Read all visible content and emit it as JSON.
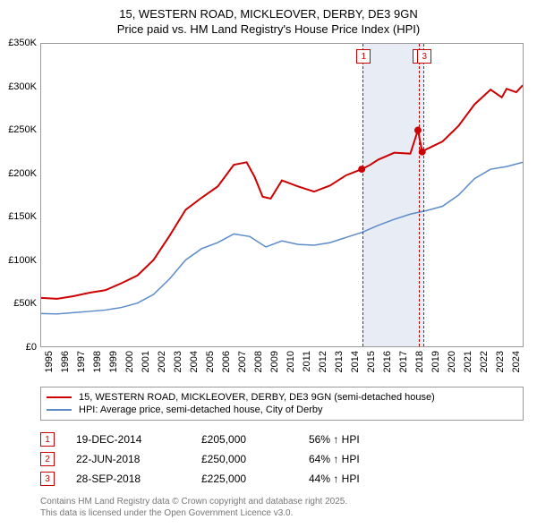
{
  "title_line1": "15, WESTERN ROAD, MICKLEOVER, DERBY, DE3 9GN",
  "title_line2": "Price paid vs. HM Land Registry's House Price Index (HPI)",
  "chart": {
    "type": "line",
    "background_color": "#ffffff",
    "border_color": "#999999",
    "xlim": [
      1995,
      2025
    ],
    "ylim": [
      0,
      350000
    ],
    "y_ticks": [
      0,
      50000,
      100000,
      150000,
      200000,
      250000,
      300000,
      350000
    ],
    "y_tick_labels": [
      "£0",
      "£50K",
      "£100K",
      "£150K",
      "£200K",
      "£250K",
      "£300K",
      "£350K"
    ],
    "y_tick_fontsize": 11,
    "x_ticks": [
      1995,
      1996,
      1997,
      1998,
      1999,
      2000,
      2001,
      2002,
      2003,
      2004,
      2005,
      2006,
      2007,
      2008,
      2009,
      2010,
      2011,
      2012,
      2013,
      2014,
      2015,
      2016,
      2017,
      2018,
      2019,
      2020,
      2021,
      2022,
      2023,
      2024
    ],
    "x_tick_fontsize": 11,
    "highlight_band": {
      "start": 2014.97,
      "end": 2018.74,
      "color": "#e8edf5"
    },
    "markers": [
      {
        "id": "1",
        "x": 2014.97,
        "vline_color": "#cc0000",
        "box_color": "#cc0000"
      },
      {
        "id": "2",
        "x": 2018.47,
        "vline_color": "#cc0000",
        "box_color": "#cc0000"
      },
      {
        "id": "3",
        "x": 2018.74,
        "vline_color": "#cc0000",
        "box_color": "#cc0000"
      }
    ],
    "series": [
      {
        "name": "price_paid",
        "label": "15, WESTERN ROAD, MICKLEOVER, DERBY, DE3 9GN (semi-detached house)",
        "color": "#cc0000",
        "line_width": 2,
        "sale_dot_radius": 4,
        "data": [
          [
            1995,
            56000
          ],
          [
            1996,
            55000
          ],
          [
            1997,
            58000
          ],
          [
            1998,
            62000
          ],
          [
            1999,
            65000
          ],
          [
            2000,
            73000
          ],
          [
            2001,
            82000
          ],
          [
            2002,
            100000
          ],
          [
            2003,
            128000
          ],
          [
            2004,
            158000
          ],
          [
            2005,
            172000
          ],
          [
            2006,
            185000
          ],
          [
            2007,
            210000
          ],
          [
            2007.8,
            213000
          ],
          [
            2008.3,
            196000
          ],
          [
            2008.8,
            173000
          ],
          [
            2009.3,
            171000
          ],
          [
            2010,
            192000
          ],
          [
            2011,
            185000
          ],
          [
            2012,
            179000
          ],
          [
            2013,
            186000
          ],
          [
            2014,
            198000
          ],
          [
            2014.97,
            205000
          ],
          [
            2015.5,
            210000
          ],
          [
            2016,
            216000
          ],
          [
            2017,
            224000
          ],
          [
            2018,
            223000
          ],
          [
            2018.47,
            250000
          ],
          [
            2018.74,
            225000
          ],
          [
            2019,
            228000
          ],
          [
            2020,
            237000
          ],
          [
            2021,
            255000
          ],
          [
            2022,
            280000
          ],
          [
            2023,
            297000
          ],
          [
            2023.7,
            288000
          ],
          [
            2024,
            298000
          ],
          [
            2024.6,
            294000
          ],
          [
            2025,
            302000
          ]
        ],
        "sale_points": [
          [
            2014.97,
            205000
          ],
          [
            2018.47,
            250000
          ],
          [
            2018.74,
            225000
          ]
        ]
      },
      {
        "name": "hpi",
        "label": "HPI: Average price, semi-detached house, City of Derby",
        "color": "#5b8bc9",
        "line_width": 1.5,
        "data": [
          [
            1995,
            38000
          ],
          [
            1996,
            37500
          ],
          [
            1997,
            39000
          ],
          [
            1998,
            40500
          ],
          [
            1999,
            42000
          ],
          [
            2000,
            45000
          ],
          [
            2001,
            50000
          ],
          [
            2002,
            60000
          ],
          [
            2003,
            78000
          ],
          [
            2004,
            100000
          ],
          [
            2005,
            113000
          ],
          [
            2006,
            120000
          ],
          [
            2007,
            130000
          ],
          [
            2008,
            127000
          ],
          [
            2009,
            115000
          ],
          [
            2010,
            122000
          ],
          [
            2011,
            118000
          ],
          [
            2012,
            117000
          ],
          [
            2013,
            120000
          ],
          [
            2014,
            126000
          ],
          [
            2015,
            132000
          ],
          [
            2016,
            140000
          ],
          [
            2017,
            147000
          ],
          [
            2018,
            153000
          ],
          [
            2019,
            157000
          ],
          [
            2020,
            162000
          ],
          [
            2021,
            175000
          ],
          [
            2022,
            194000
          ],
          [
            2023,
            205000
          ],
          [
            2024,
            208000
          ],
          [
            2025,
            213000
          ]
        ]
      }
    ]
  },
  "legend": {
    "border_color": "#999999",
    "fontsize": 11
  },
  "sales": [
    {
      "id": "1",
      "date": "19-DEC-2014",
      "price": "£205,000",
      "hpi_diff": "56% ↑ HPI",
      "box_color": "#cc0000"
    },
    {
      "id": "2",
      "date": "22-JUN-2018",
      "price": "£250,000",
      "hpi_diff": "64% ↑ HPI",
      "box_color": "#cc0000"
    },
    {
      "id": "3",
      "date": "28-SEP-2018",
      "price": "£225,000",
      "hpi_diff": "44% ↑ HPI",
      "box_color": "#cc0000"
    }
  ],
  "footer_line1": "Contains HM Land Registry data © Crown copyright and database right 2025.",
  "footer_line2": "This data is licensed under the Open Government Licence v3.0.",
  "footer_color": "#777777"
}
